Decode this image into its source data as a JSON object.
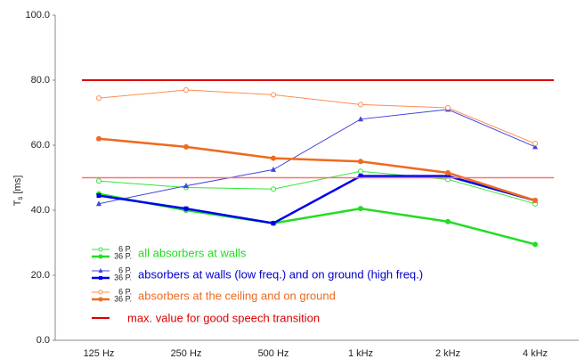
{
  "chart_data": {
    "type": "line",
    "ylabel": {
      "main": "T",
      "sub": "s",
      "unit": " [ms]"
    },
    "categories": [
      "125 Hz",
      "250 Hz",
      "500 Hz",
      "1 kHz",
      "2 kHz",
      "4 kHz"
    ],
    "ylim": [
      0,
      100
    ],
    "yticks": [
      {
        "value": 0,
        "label": "0.0"
      },
      {
        "value": 20,
        "label": "20.0"
      },
      {
        "value": 40,
        "label": "40.0"
      },
      {
        "value": 60,
        "label": "60.0"
      },
      {
        "value": 80,
        "label": "80.0"
      },
      {
        "value": 100,
        "label": "100.0"
      }
    ],
    "series": [
      {
        "name": "6 P.",
        "color": "#33e633",
        "width": 1,
        "marker": "circle-open",
        "values": [
          49,
          47,
          46.5,
          52,
          49.5,
          42
        ]
      },
      {
        "name": "36 P.",
        "color": "#22dd22",
        "width": 2.5,
        "marker": "circle",
        "values": [
          45,
          40,
          36,
          40.5,
          36.5,
          29.5
        ]
      },
      {
        "name": "6 P.",
        "color": "#4444dd",
        "width": 1,
        "marker": "triangle",
        "values": [
          42,
          47.5,
          52.5,
          68,
          71,
          59.5
        ]
      },
      {
        "name": "36 P.",
        "color": "#0000ee",
        "width": 2.5,
        "marker": "square",
        "values": [
          44.5,
          40.5,
          36,
          50.5,
          50.5,
          43
        ]
      },
      {
        "name": "6 P.",
        "color": "#ff8c50",
        "width": 1,
        "marker": "circle-open",
        "values": [
          74.5,
          77,
          75.5,
          72.5,
          71.5,
          60.5
        ]
      },
      {
        "name": "36 P.",
        "color": "#ee6a20",
        "width": 2.5,
        "marker": "circle",
        "values": [
          62,
          59.5,
          56,
          55,
          51.5,
          43
        ]
      },
      {
        "name": "max. value for good speech transition",
        "color": "#dd0000",
        "width": 2,
        "marker": "none",
        "values": [
          80,
          80,
          80,
          80,
          80,
          80
        ]
      },
      {
        "color": "#ff7070",
        "width": 1.5,
        "marker": "none",
        "values": [
          50,
          50,
          50,
          50,
          50,
          50
        ]
      }
    ],
    "legend_groups": [
      {
        "text": "all absorbers at walls",
        "color": "#22dd22"
      },
      {
        "text": "absorbers at walls (low freq.) and on ground (high freq.)",
        "color": "#0000cc"
      },
      {
        "text": "absorbers at the ceiling and on ground",
        "color": "#ee6a20"
      }
    ]
  }
}
